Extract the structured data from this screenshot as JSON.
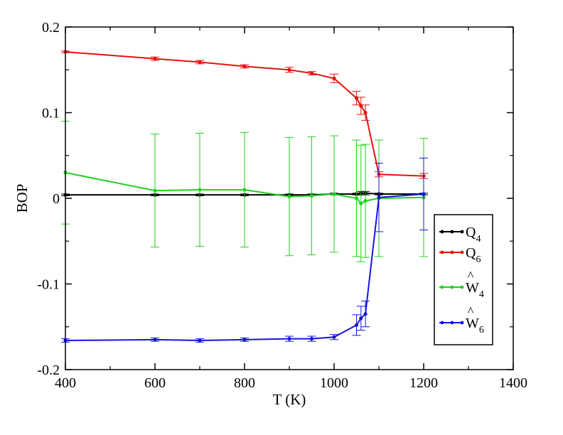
{
  "chart_data": {
    "type": "line",
    "xlabel": "T (K)",
    "ylabel": "BOP",
    "xlim": [
      400,
      1400
    ],
    "ylim": [
      -0.2,
      0.2
    ],
    "xticks": [
      "400",
      "600",
      "800",
      "1000",
      "1200",
      "1400"
    ],
    "yticks": [
      "-0.2",
      "-0.1",
      "0",
      "0.1",
      "0.2"
    ],
    "grid": false,
    "legend_position": "bottom-right",
    "x": [
      400,
      600,
      700,
      800,
      900,
      950,
      1000,
      1050,
      1060,
      1070,
      1100,
      1200
    ],
    "series": [
      {
        "name": "Q4",
        "label_main": "Q",
        "label_sub": "4",
        "hat": false,
        "color": "#000000",
        "values": [
          0.004,
          0.004,
          0.004,
          0.004,
          0.004,
          0.004,
          0.005,
          0.005,
          0.006,
          0.006,
          0.005,
          0.005
        ],
        "errors": [
          0.001,
          0.001,
          0.001,
          0.001,
          0.001,
          0.001,
          0.001,
          0.001,
          0.002,
          0.002,
          0.001,
          0.001
        ]
      },
      {
        "name": "Q6",
        "label_main": "Q",
        "label_sub": "6",
        "hat": false,
        "color": "#e8120e",
        "values": [
          0.171,
          0.163,
          0.159,
          0.154,
          0.15,
          0.146,
          0.14,
          0.117,
          0.108,
          0.1,
          0.028,
          0.026
        ],
        "errors": [
          0.001,
          0.002,
          0.002,
          0.002,
          0.003,
          0.002,
          0.005,
          0.008,
          0.01,
          0.009,
          0.003,
          0.003
        ]
      },
      {
        "name": "W4",
        "label_main": "W",
        "label_sub": "4",
        "hat": true,
        "color": "#1ed31e",
        "values": [
          0.03,
          0.009,
          0.01,
          0.01,
          0.002,
          0.003,
          0.005,
          0.0,
          -0.006,
          -0.003,
          0.0,
          0.001
        ],
        "errors": [
          0.06,
          0.066,
          0.066,
          0.067,
          0.069,
          0.069,
          0.068,
          0.068,
          0.068,
          0.066,
          0.068,
          0.069
        ]
      },
      {
        "name": "W6",
        "label_main": "W",
        "label_sub": "6",
        "hat": true,
        "color": "#1515e0",
        "values": [
          -0.166,
          -0.165,
          -0.166,
          -0.165,
          -0.164,
          -0.164,
          -0.162,
          -0.148,
          -0.14,
          -0.135,
          0.001,
          0.005
        ],
        "errors": [
          0.002,
          0.002,
          0.002,
          0.002,
          0.003,
          0.003,
          0.003,
          0.012,
          0.014,
          0.015,
          0.04,
          0.042
        ]
      }
    ]
  }
}
